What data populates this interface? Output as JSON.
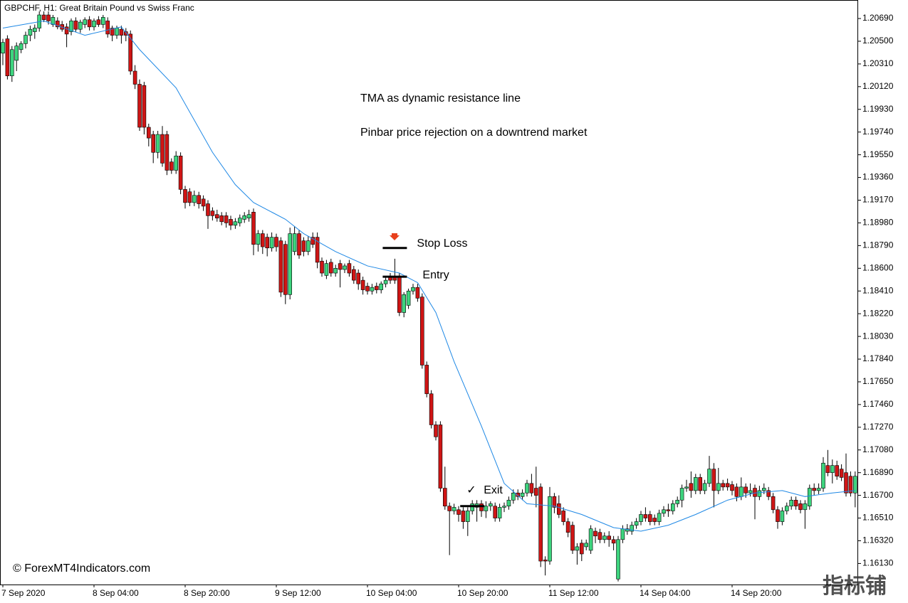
{
  "chart_data": {
    "type": "candlestick",
    "title": "GBPCHF, H1:  Great Britain Pound vs Swiss Franc",
    "watermark": "© ForexMT4Indicators.com",
    "watermark2": "指标铺",
    "notes": [
      "TMA as dynamic resistance line",
      "Pinbar price rejection on a downtrend market"
    ],
    "levels": [
      {
        "label": "Stop Loss",
        "value": 1.1877,
        "x": 86
      },
      {
        "label": "Entry",
        "value": 1.1853,
        "x": 86
      },
      {
        "label": "Exit",
        "value": 1.1661,
        "x": 103,
        "mark": "✓"
      }
    ],
    "up_color": "#3dd47e",
    "down_color": "#cf1515",
    "wick_color": "#000000",
    "ylim": [
      1.15954,
      1.20845
    ],
    "yticks": [
      {
        "value": 1.2069,
        "label": "1.20690"
      },
      {
        "value": 1.205,
        "label": "1.20500"
      },
      {
        "value": 1.2031,
        "label": "1.20310"
      },
      {
        "value": 1.2012,
        "label": "1.20120"
      },
      {
        "value": 1.1993,
        "label": "1.19930"
      },
      {
        "value": 1.1974,
        "label": "1.19740"
      },
      {
        "value": 1.1955,
        "label": "1.19550"
      },
      {
        "value": 1.1936,
        "label": "1.19360"
      },
      {
        "value": 1.1917,
        "label": "1.19170"
      },
      {
        "value": 1.1898,
        "label": "1.18980"
      },
      {
        "value": 1.1879,
        "label": "1.18790"
      },
      {
        "value": 1.186,
        "label": "1.18600"
      },
      {
        "value": 1.1841,
        "label": "1.18410"
      },
      {
        "value": 1.1822,
        "label": "1.18220"
      },
      {
        "value": 1.1803,
        "label": "1.18030"
      },
      {
        "value": 1.1784,
        "label": "1.17840"
      },
      {
        "value": 1.1765,
        "label": "1.17650"
      },
      {
        "value": 1.1746,
        "label": "1.17460"
      },
      {
        "value": 1.1727,
        "label": "1.17270"
      },
      {
        "value": 1.1708,
        "label": "1.17080"
      },
      {
        "value": 1.1689,
        "label": "1.16890"
      },
      {
        "value": 1.167,
        "label": "1.16700"
      },
      {
        "value": 1.1651,
        "label": "1.16510"
      },
      {
        "value": 1.1632,
        "label": "1.16320"
      },
      {
        "value": 1.1613,
        "label": "1.16130"
      }
    ],
    "xticks": [
      {
        "value": 0,
        "label": "7 Sep 2020"
      },
      {
        "value": 20,
        "label": "8 Sep 04:00"
      },
      {
        "value": 40,
        "label": "8 Sep 20:00"
      },
      {
        "value": 60,
        "label": "9 Sep 12:00"
      },
      {
        "value": 80,
        "label": "10 Sep 04:00"
      },
      {
        "value": 100,
        "label": "10 Sep 20:00"
      },
      {
        "value": 120,
        "label": "11 Sep 12:00"
      },
      {
        "value": 140,
        "label": "14 Sep 04:00"
      },
      {
        "value": 160,
        "label": "14 Sep 20:00"
      }
    ],
    "tma": {
      "color": "#1e88e5",
      "x": [
        0,
        9,
        18,
        26,
        30,
        38,
        46,
        51,
        55,
        62,
        66,
        73,
        80,
        87,
        91,
        95,
        99,
        105,
        110,
        115,
        121,
        127,
        134,
        140,
        146,
        152,
        159,
        165,
        171,
        176,
        182,
        187
      ],
      "values": [
        1.2061,
        1.2067,
        1.2055,
        1.2062,
        1.2043,
        1.2011,
        1.1957,
        1.193,
        1.1915,
        1.1901,
        1.1889,
        1.1874,
        1.1862,
        1.1856,
        1.1848,
        1.1823,
        1.1782,
        1.1728,
        1.168,
        1.1663,
        1.1661,
        1.1654,
        1.1643,
        1.164,
        1.1645,
        1.1654,
        1.1666,
        1.1672,
        1.1674,
        1.1669,
        1.1672,
        1.1674
      ]
    },
    "candles": [
      [
        1.204,
        1.2052,
        1.203,
        1.2049
      ],
      [
        1.2052,
        1.2055,
        1.2018,
        1.2021
      ],
      [
        1.2021,
        1.2046,
        1.2016,
        1.2043
      ],
      [
        1.2034,
        1.2049,
        1.2025,
        1.2046
      ],
      [
        1.2043,
        1.205,
        1.204,
        1.2048
      ],
      [
        1.2048,
        1.2058,
        1.2044,
        1.2055
      ],
      [
        1.2055,
        1.2063,
        1.205,
        1.206
      ],
      [
        1.2058,
        1.2064,
        1.2052,
        1.2061
      ],
      [
        1.2061,
        1.2075,
        1.2058,
        1.2072
      ],
      [
        1.2072,
        1.2075,
        1.2066,
        1.2068
      ],
      [
        1.2072,
        1.2075,
        1.2064,
        1.2067
      ],
      [
        1.2064,
        1.2072,
        1.2062,
        1.207
      ],
      [
        1.2067,
        1.207,
        1.206,
        1.2062
      ],
      [
        1.2064,
        1.2067,
        1.2058,
        1.206
      ],
      [
        1.2062,
        1.2065,
        1.2045,
        1.2056
      ],
      [
        1.2058,
        1.2069,
        1.2055,
        1.2067
      ],
      [
        1.2067,
        1.207,
        1.2058,
        1.206
      ],
      [
        1.206,
        1.2068,
        1.2057,
        1.2066
      ],
      [
        1.2064,
        1.207,
        1.2061,
        1.2068
      ],
      [
        1.2068,
        1.2071,
        1.2059,
        1.2062
      ],
      [
        1.2062,
        1.2069,
        1.2059,
        1.2067
      ],
      [
        1.2068,
        1.2071,
        1.2062,
        1.2064
      ],
      [
        1.2064,
        1.2072,
        1.2061,
        1.207
      ],
      [
        1.2067,
        1.207,
        1.2053,
        1.2056
      ],
      [
        1.2061,
        1.2063,
        1.205,
        1.2055
      ],
      [
        1.2055,
        1.2063,
        1.2052,
        1.2061
      ],
      [
        1.206,
        1.2063,
        1.2048,
        1.2055
      ],
      [
        1.2058,
        1.2061,
        1.205,
        1.2055
      ],
      [
        1.2056,
        1.2059,
        1.2022,
        1.2025
      ],
      [
        1.2025,
        1.203,
        1.201,
        1.2014
      ],
      [
        1.2014,
        1.2018,
        1.1975,
        1.1978
      ],
      [
        1.2013,
        1.2016,
        1.1972,
        1.1978
      ],
      [
        1.1978,
        1.1981,
        1.1962,
        1.1969
      ],
      [
        1.1972,
        1.1975,
        1.1948,
        1.1957
      ],
      [
        1.1957,
        1.1975,
        1.1952,
        1.1972
      ],
      [
        1.1972,
        1.1979,
        1.1945,
        1.1948
      ],
      [
        1.1972,
        1.1975,
        1.1938,
        1.1942
      ],
      [
        1.1949,
        1.1952,
        1.1939,
        1.1942
      ],
      [
        1.1942,
        1.1958,
        1.1939,
        1.1954
      ],
      [
        1.1954,
        1.1957,
        1.1922,
        1.1926
      ],
      [
        1.1926,
        1.1929,
        1.191,
        1.1915
      ],
      [
        1.1924,
        1.1927,
        1.1912,
        1.1915
      ],
      [
        1.1915,
        1.1925,
        1.1912,
        1.1921
      ],
      [
        1.1921,
        1.1924,
        1.191,
        1.1914
      ],
      [
        1.1918,
        1.1921,
        1.1908,
        1.1912
      ],
      [
        1.1914,
        1.1917,
        1.1893,
        1.1904
      ],
      [
        1.1908,
        1.1911,
        1.19,
        1.1904
      ],
      [
        1.1905,
        1.1909,
        1.1899,
        1.1902
      ],
      [
        1.1904,
        1.1907,
        1.1896,
        1.1899
      ],
      [
        1.1904,
        1.1907,
        1.1894,
        1.1898
      ],
      [
        1.1901,
        1.1904,
        1.1892,
        1.1896
      ],
      [
        1.1896,
        1.1902,
        1.1893,
        1.1899
      ],
      [
        1.1898,
        1.1905,
        1.1895,
        1.1902
      ],
      [
        1.1901,
        1.1907,
        1.1898,
        1.1904
      ],
      [
        1.1902,
        1.1909,
        1.1899,
        1.1905
      ],
      [
        1.1907,
        1.191,
        1.1871,
        1.188
      ],
      [
        1.188,
        1.1892,
        1.1874,
        1.1889
      ],
      [
        1.1889,
        1.1892,
        1.1872,
        1.1878
      ],
      [
        1.1886,
        1.1889,
        1.187,
        1.1877
      ],
      [
        1.1877,
        1.189,
        1.1874,
        1.1886
      ],
      [
        1.1886,
        1.1889,
        1.1874,
        1.1878
      ],
      [
        1.1883,
        1.1886,
        1.1836,
        1.184
      ],
      [
        1.188,
        1.1883,
        1.183,
        1.1838
      ],
      [
        1.1838,
        1.1894,
        1.1834,
        1.1889
      ],
      [
        1.1874,
        1.1895,
        1.1871,
        1.1889
      ],
      [
        1.1889,
        1.1892,
        1.1868,
        1.1871
      ],
      [
        1.1883,
        1.1886,
        1.187,
        1.1874
      ],
      [
        1.1874,
        1.1887,
        1.1871,
        1.1883
      ],
      [
        1.1886,
        1.189,
        1.1877,
        1.188
      ],
      [
        1.1886,
        1.189,
        1.186,
        1.1865
      ],
      [
        1.1866,
        1.1869,
        1.1853,
        1.1856
      ],
      [
        1.1854,
        1.1867,
        1.1851,
        1.1864
      ],
      [
        1.1865,
        1.1868,
        1.1853,
        1.1856
      ],
      [
        1.1856,
        1.1863,
        1.1853,
        1.186
      ],
      [
        1.1864,
        1.1867,
        1.1844,
        1.1859
      ],
      [
        1.1859,
        1.1864,
        1.1856,
        1.1862
      ],
      [
        1.1864,
        1.1867,
        1.1853,
        1.1856
      ],
      [
        1.1859,
        1.1862,
        1.1847,
        1.185
      ],
      [
        1.1856,
        1.1859,
        1.1842,
        1.1847
      ],
      [
        1.185,
        1.1853,
        1.1838,
        1.1842
      ],
      [
        1.1845,
        1.1848,
        1.1838,
        1.1841
      ],
      [
        1.1841,
        1.1847,
        1.1838,
        1.1844
      ],
      [
        1.1845,
        1.1848,
        1.1839,
        1.1842
      ],
      [
        1.1842,
        1.1849,
        1.1839,
        1.1847
      ],
      [
        1.1847,
        1.1853,
        1.1844,
        1.185
      ],
      [
        1.1853,
        1.1856,
        1.1847,
        1.185
      ],
      [
        1.1853,
        1.1868,
        1.1847,
        1.185
      ],
      [
        1.1853,
        1.1856,
        1.182,
        1.1823
      ],
      [
        1.1823,
        1.184,
        1.1819,
        1.1838
      ],
      [
        1.1829,
        1.1843,
        1.1826,
        1.1841
      ],
      [
        1.1841,
        1.1847,
        1.1838,
        1.1844
      ],
      [
        1.1844,
        1.1847,
        1.1832,
        1.1835
      ],
      [
        1.1836,
        1.1839,
        1.1776,
        1.1779
      ],
      [
        1.1779,
        1.1782,
        1.1752,
        1.1755
      ],
      [
        1.1755,
        1.1758,
        1.1726,
        1.1729
      ],
      [
        1.1729,
        1.1732,
        1.1716,
        1.1719
      ],
      [
        1.1729,
        1.1732,
        1.1673,
        1.1676
      ],
      [
        1.1676,
        1.1694,
        1.1658,
        1.1661
      ],
      [
        1.1661,
        1.1664,
        1.162,
        1.1657
      ],
      [
        1.1657,
        1.1663,
        1.1654,
        1.166
      ],
      [
        1.1658,
        1.1661,
        1.1648,
        1.1654
      ],
      [
        1.1657,
        1.166,
        1.1642,
        1.1648
      ],
      [
        1.1648,
        1.166,
        1.1636,
        1.1657
      ],
      [
        1.1657,
        1.1666,
        1.1654,
        1.1663
      ],
      [
        1.166,
        1.1666,
        1.1648,
        1.1663
      ],
      [
        1.1663,
        1.1666,
        1.1652,
        1.1657
      ],
      [
        1.1657,
        1.1665,
        1.1651,
        1.1661
      ],
      [
        1.1661,
        1.1665,
        1.1657,
        1.1663
      ],
      [
        1.1661,
        1.1664,
        1.1648,
        1.1651
      ],
      [
        1.1651,
        1.1663,
        1.1648,
        1.166
      ],
      [
        1.166,
        1.1664,
        1.1656,
        1.1661
      ],
      [
        1.1661,
        1.1669,
        1.1658,
        1.1666
      ],
      [
        1.1666,
        1.1675,
        1.1663,
        1.1672
      ],
      [
        1.1672,
        1.1675,
        1.1666,
        1.1669
      ],
      [
        1.1669,
        1.1675,
        1.1666,
        1.1672
      ],
      [
        1.1672,
        1.1683,
        1.1669,
        1.168
      ],
      [
        1.168,
        1.1688,
        1.1669,
        1.1672
      ],
      [
        1.1676,
        1.1694,
        1.166,
        1.167
      ],
      [
        1.1677,
        1.168,
        1.161,
        1.1615
      ],
      [
        1.1616,
        1.1619,
        1.1603,
        1.1615
      ],
      [
        1.1615,
        1.1677,
        1.1612,
        1.1669
      ],
      [
        1.1669,
        1.1672,
        1.1655,
        1.166
      ],
      [
        1.1663,
        1.167,
        1.1651,
        1.1654
      ],
      [
        1.1657,
        1.166,
        1.1645,
        1.1648
      ],
      [
        1.1648,
        1.1651,
        1.1635,
        1.1639
      ],
      [
        1.1645,
        1.1648,
        1.1621,
        1.1624
      ],
      [
        1.1624,
        1.163,
        1.1612,
        1.1627
      ],
      [
        1.163,
        1.1633,
        1.1615,
        1.1621
      ],
      [
        1.1627,
        1.1633,
        1.1624,
        1.163
      ],
      [
        1.1624,
        1.1645,
        1.1621,
        1.1642
      ],
      [
        1.164,
        1.1643,
        1.163,
        1.1636
      ],
      [
        1.1639,
        1.1642,
        1.163,
        1.1633
      ],
      [
        1.1633,
        1.1639,
        1.163,
        1.1636
      ],
      [
        1.1636,
        1.164,
        1.1627,
        1.1633
      ],
      [
        1.1633,
        1.1636,
        1.1624,
        1.163
      ],
      [
        1.16,
        1.1636,
        1.1598,
        1.1633
      ],
      [
        1.1633,
        1.1645,
        1.163,
        1.1642
      ],
      [
        1.164,
        1.1646,
        1.1637,
        1.1642
      ],
      [
        1.164,
        1.1648,
        1.1637,
        1.1645
      ],
      [
        1.1645,
        1.1651,
        1.1642,
        1.1648
      ],
      [
        1.1648,
        1.1657,
        1.1645,
        1.1654
      ],
      [
        1.1654,
        1.166,
        1.1648,
        1.1651
      ],
      [
        1.1654,
        1.1657,
        1.1645,
        1.1648
      ],
      [
        1.1651,
        1.1654,
        1.1645,
        1.1648
      ],
      [
        1.1648,
        1.1658,
        1.1645,
        1.1655
      ],
      [
        1.1655,
        1.1661,
        1.1652,
        1.1658
      ],
      [
        1.1658,
        1.1663,
        1.1652,
        1.1657
      ],
      [
        1.1657,
        1.1666,
        1.1654,
        1.1663
      ],
      [
        1.1663,
        1.1669,
        1.166,
        1.1666
      ],
      [
        1.1666,
        1.1679,
        1.166,
        1.1676
      ],
      [
        1.1676,
        1.1683,
        1.1673,
        1.1677
      ],
      [
        1.168,
        1.169,
        1.1668,
        1.1674
      ],
      [
        1.1674,
        1.1688,
        1.1671,
        1.1685
      ],
      [
        1.1685,
        1.1688,
        1.1671,
        1.1674
      ],
      [
        1.1674,
        1.1683,
        1.1671,
        1.168
      ],
      [
        1.168,
        1.1703,
        1.1677,
        1.1692
      ],
      [
        1.1692,
        1.1697,
        1.166,
        1.1674
      ],
      [
        1.1674,
        1.1693,
        1.1671,
        1.168
      ],
      [
        1.168,
        1.1683,
        1.1674,
        1.1677
      ],
      [
        1.168,
        1.1684,
        1.1674,
        1.1677
      ],
      [
        1.1679,
        1.1682,
        1.167,
        1.1674
      ],
      [
        1.1677,
        1.168,
        1.1665,
        1.1669
      ],
      [
        1.1669,
        1.1685,
        1.1666,
        1.1677
      ],
      [
        1.1677,
        1.168,
        1.1668,
        1.1672
      ],
      [
        1.1672,
        1.168,
        1.1669,
        1.1674
      ],
      [
        1.1676,
        1.1679,
        1.165,
        1.1669
      ],
      [
        1.1669,
        1.1678,
        1.1666,
        1.1674
      ],
      [
        1.1674,
        1.168,
        1.1671,
        1.1676
      ],
      [
        1.1674,
        1.1677,
        1.1666,
        1.1669
      ],
      [
        1.1669,
        1.1672,
        1.1655,
        1.1658
      ],
      [
        1.1658,
        1.1661,
        1.1642,
        1.1648
      ],
      [
        1.1648,
        1.166,
        1.1645,
        1.1657
      ],
      [
        1.1657,
        1.1664,
        1.1654,
        1.1661
      ],
      [
        1.1661,
        1.1669,
        1.1658,
        1.1666
      ],
      [
        1.1666,
        1.1669,
        1.1658,
        1.1661
      ],
      [
        1.1663,
        1.1666,
        1.1655,
        1.1658
      ],
      [
        1.1658,
        1.1666,
        1.1642,
        1.1663
      ],
      [
        1.1661,
        1.1679,
        1.1658,
        1.1676
      ],
      [
        1.1676,
        1.168,
        1.167,
        1.1674
      ],
      [
        1.1674,
        1.168,
        1.1671,
        1.1676
      ],
      [
        1.1676,
        1.1702,
        1.1673,
        1.1697
      ],
      [
        1.1695,
        1.1708,
        1.1686,
        1.1689
      ],
      [
        1.1689,
        1.17,
        1.168,
        1.1695
      ],
      [
        1.1695,
        1.1699,
        1.1683,
        1.1686
      ],
      [
        1.1692,
        1.1696,
        1.1682,
        1.1685
      ],
      [
        1.1689,
        1.1705,
        1.1669,
        1.1672
      ],
      [
        1.1686,
        1.169,
        1.1669,
        1.1672
      ],
      [
        1.1672,
        1.169,
        1.166,
        1.1686
      ]
    ]
  }
}
